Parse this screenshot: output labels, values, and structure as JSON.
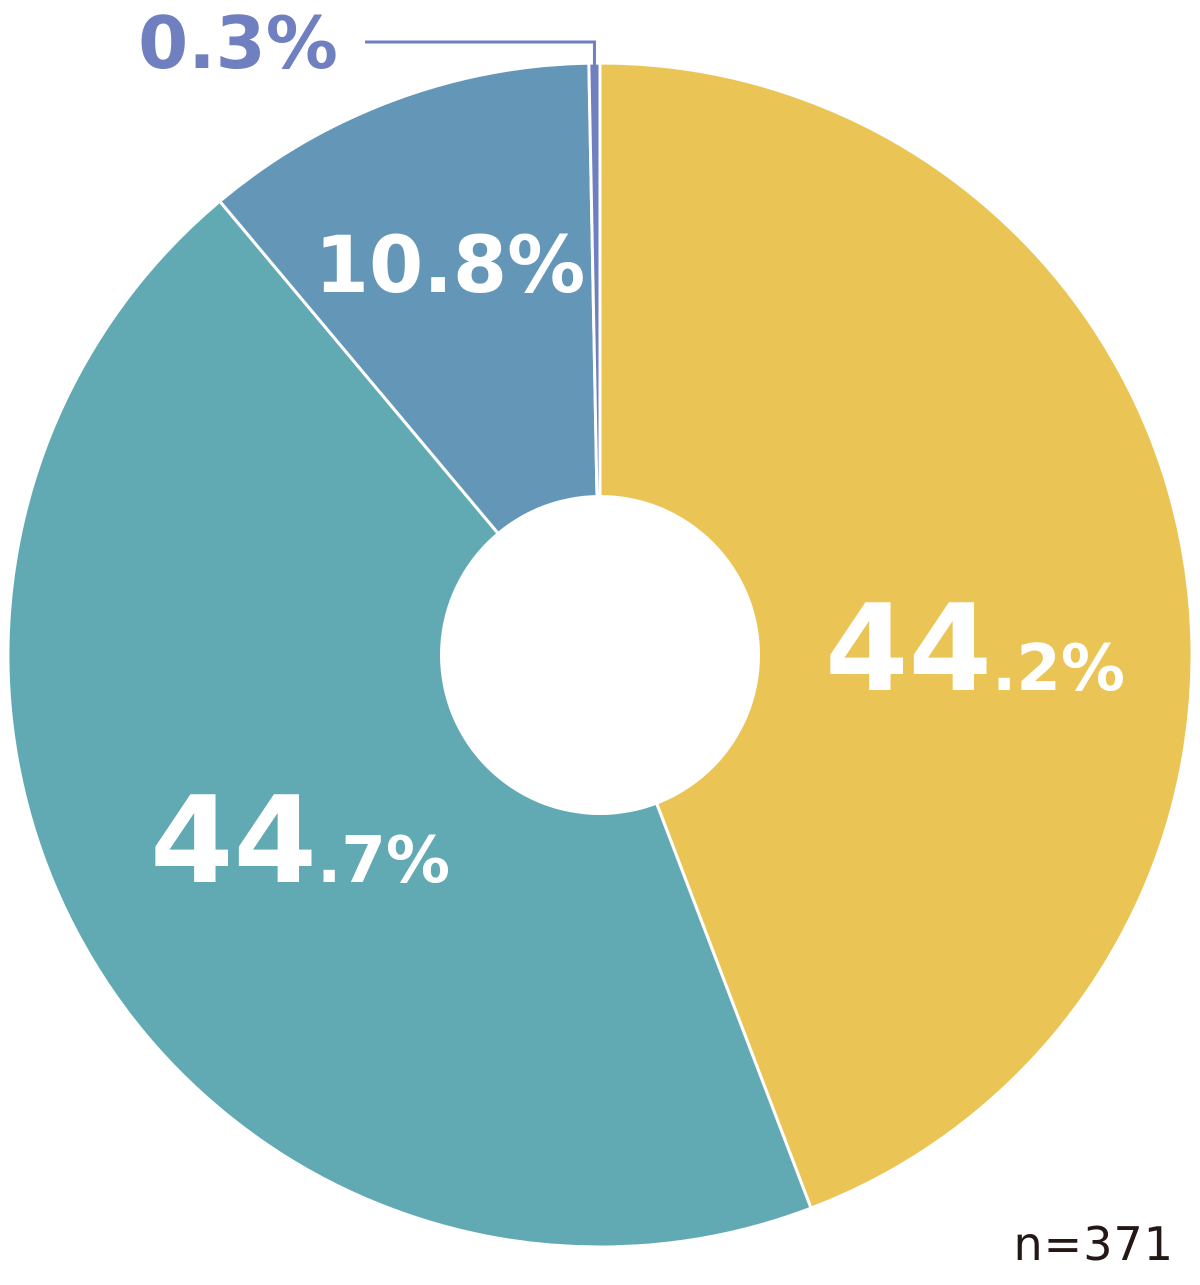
{
  "chart_data": {
    "type": "pie",
    "donut": true,
    "slices": [
      {
        "value": 44.2,
        "label": "44.2%",
        "color": "#EAC555"
      },
      {
        "value": 44.7,
        "label": "44.7%",
        "color": "#61AAB3"
      },
      {
        "value": 10.8,
        "label": "10.8%",
        "color": "#6496B8"
      },
      {
        "value": 0.3,
        "label": "0.3%",
        "color": "#6F7FBF"
      }
    ],
    "start": "top",
    "direction": "clockwise",
    "legend": "none",
    "note": "n=371"
  }
}
